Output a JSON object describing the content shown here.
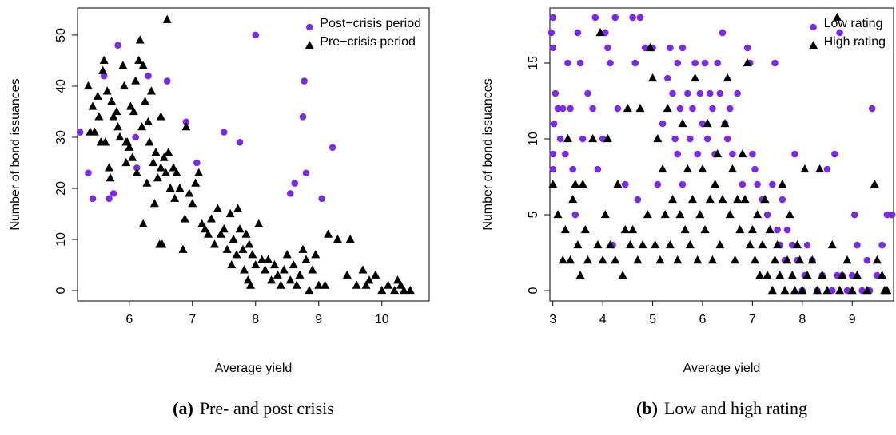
{
  "chart_data": [
    {
      "type": "scatter",
      "xlabel": "Average yield",
      "ylabel": "Number of bond issuances",
      "caption": {
        "label": "(a)",
        "text": "Pre- and post crisis"
      },
      "xlim": [
        5.18,
        10.75
      ],
      "ylim": [
        -2.03,
        55.3
      ],
      "xticks": [
        6,
        7,
        8,
        9,
        10
      ],
      "yticks": [
        0,
        10,
        20,
        30,
        40,
        50
      ],
      "legend": "topright",
      "series": [
        {
          "name": "Post−crisis period",
          "color": "#7b2be2",
          "marker": "circle",
          "x": [
            5.22,
            5.35,
            5.42,
            5.6,
            5.68,
            5.75,
            5.82,
            6.1,
            6.12,
            6.3,
            6.6,
            6.9,
            7.07,
            7.5,
            7.75,
            8.0,
            8.55,
            8.62,
            8.75,
            8.77,
            8.8,
            9.05,
            9.22
          ],
          "values": [
            31,
            23,
            18,
            42,
            18,
            19,
            48,
            30,
            24,
            42,
            41,
            33,
            25,
            31,
            29,
            50,
            19,
            21,
            34,
            41,
            23,
            18,
            28
          ]
        },
        {
          "name": "Pre−crisis period",
          "color": "#000000",
          "marker": "triangle",
          "x": [
            5.35,
            5.38,
            5.42,
            5.45,
            5.5,
            5.52,
            5.55,
            5.58,
            5.6,
            5.62,
            5.65,
            5.68,
            5.7,
            5.72,
            5.75,
            5.8,
            5.82,
            5.85,
            5.9,
            5.92,
            5.95,
            5.97,
            6.0,
            6.02,
            6.05,
            6.07,
            6.1,
            6.12,
            6.15,
            6.17,
            6.2,
            6.22,
            6.25,
            6.28,
            6.3,
            6.32,
            6.35,
            6.38,
            6.4,
            6.42,
            6.45,
            6.48,
            6.5,
            6.52,
            6.55,
            6.58,
            6.6,
            6.62,
            6.65,
            6.7,
            6.72,
            6.75,
            6.8,
            6.85,
            6.88,
            6.9,
            6.95,
            7.0,
            7.05,
            7.1,
            7.15,
            7.2,
            7.25,
            7.3,
            7.35,
            7.4,
            7.45,
            7.5,
            7.55,
            7.6,
            7.62,
            7.65,
            7.7,
            7.72,
            7.75,
            7.8,
            7.82,
            7.85,
            7.88,
            7.9,
            7.92,
            7.95,
            8.0,
            8.05,
            8.1,
            8.15,
            8.2,
            8.25,
            8.3,
            8.35,
            8.4,
            8.45,
            8.5,
            8.55,
            8.6,
            8.65,
            8.7,
            8.75,
            8.8,
            8.85,
            8.9,
            8.95,
            9.0,
            9.1,
            9.15,
            9.3,
            9.45,
            9.5,
            9.6,
            9.7,
            9.75,
            9.8,
            9.9,
            10.0,
            10.1,
            10.2,
            10.25,
            10.3,
            10.35,
            10.45,
            6.22,
            5.95,
            6.5
          ],
          "values": [
            40,
            31,
            36,
            31,
            38,
            34,
            29,
            43,
            45,
            29,
            39,
            24,
            22,
            37,
            34,
            35,
            32,
            30,
            44,
            40,
            25,
            29,
            28,
            36,
            26,
            35,
            41,
            23,
            45,
            49,
            32,
            44,
            37,
            21,
            33,
            29,
            39,
            25,
            17,
            27,
            22,
            9,
            24,
            9,
            26,
            23,
            53,
            27,
            20,
            24,
            18,
            23,
            20,
            8,
            14,
            32,
            19,
            17,
            21,
            23,
            13,
            12,
            11,
            14,
            9,
            16,
            11,
            12,
            8,
            15,
            5,
            10,
            7,
            16,
            12,
            8,
            4,
            11,
            2,
            9,
            1,
            7,
            5,
            13,
            6,
            4,
            6,
            2,
            5,
            3,
            1,
            4,
            7,
            2,
            5,
            1,
            3,
            8,
            6,
            0,
            4,
            7,
            1,
            1,
            11,
            10,
            3,
            10,
            1,
            4,
            1,
            2,
            3,
            0,
            1,
            0,
            2,
            1,
            0,
            0,
            13,
            29,
            34
          ]
        }
      ]
    },
    {
      "type": "scatter",
      "xlabel": "Average yield",
      "ylabel": "Number of bond issuances",
      "caption": {
        "label": "(b)",
        "text": "Low and high rating"
      },
      "xlim": [
        2.94,
        9.83
      ],
      "ylim": [
        -0.68,
        18.63
      ],
      "xticks": [
        3,
        4,
        5,
        6,
        7,
        8,
        9
      ],
      "yticks": [
        0,
        5,
        10,
        15
      ],
      "legend": "topright",
      "series": [
        {
          "name": "Low rating",
          "color": "#7b2be2",
          "marker": "circle",
          "x": [
            3.0,
            2.97,
            3.0,
            3.05,
            3.02,
            3.0,
            3.0,
            3.1,
            3.15,
            3.2,
            3.25,
            3.3,
            3.35,
            3.4,
            3.45,
            3.5,
            3.55,
            3.6,
            3.7,
            3.8,
            3.85,
            3.9,
            4.0,
            4.05,
            4.1,
            4.15,
            4.2,
            4.25,
            4.3,
            4.45,
            4.6,
            4.65,
            4.7,
            4.75,
            4.85,
            5.0,
            5.1,
            5.2,
            5.3,
            5.35,
            5.4,
            5.45,
            5.5,
            5.5,
            5.55,
            5.6,
            5.6,
            5.7,
            5.75,
            5.8,
            5.85,
            5.9,
            5.95,
            6.0,
            6.05,
            6.1,
            6.15,
            6.2,
            6.25,
            6.3,
            6.35,
            6.4,
            6.45,
            6.5,
            6.55,
            6.6,
            6.7,
            6.8,
            6.9,
            6.95,
            7.0,
            7.05,
            7.1,
            7.2,
            7.3,
            7.4,
            7.45,
            7.5,
            7.55,
            7.6,
            7.65,
            7.7,
            7.8,
            7.85,
            7.9,
            8.0,
            8.05,
            8.1,
            8.2,
            8.3,
            8.4,
            8.5,
            8.6,
            8.65,
            8.7,
            8.75,
            8.8,
            8.9,
            9.0,
            9.05,
            9.1,
            9.2,
            9.3,
            9.35,
            9.4,
            9.5,
            9.6,
            9.7,
            9.8
          ],
          "values": [
            18,
            17,
            16,
            13,
            11,
            9,
            8,
            12,
            10,
            12,
            9,
            15,
            12,
            8,
            5,
            17,
            15,
            10,
            13,
            12,
            18,
            8,
            10,
            17,
            16,
            15,
            3,
            18,
            12,
            7,
            18,
            15,
            6,
            18,
            16,
            16,
            7,
            11,
            14,
            16,
            13,
            10,
            15,
            9,
            12,
            16,
            7,
            13,
            10,
            12,
            15,
            9,
            13,
            11,
            15,
            10,
            13,
            12,
            9,
            15,
            13,
            17,
            11,
            10,
            12,
            9,
            13,
            7,
            16,
            15,
            9,
            8,
            7,
            6,
            5,
            7,
            15,
            4,
            3,
            6,
            2,
            4,
            3,
            9,
            2,
            0,
            1,
            3,
            2,
            0,
            1,
            8,
            0,
            9,
            1,
            17,
            1,
            0,
            1,
            5,
            3,
            0,
            2,
            0,
            12,
            1,
            3,
            5,
            5
          ]
        },
        {
          "name": "High rating",
          "color": "#000000",
          "marker": "triangle",
          "x": [
            3.0,
            3.1,
            3.2,
            3.25,
            3.3,
            3.35,
            3.4,
            3.45,
            3.5,
            3.55,
            3.6,
            3.65,
            3.7,
            3.8,
            3.9,
            3.95,
            4.0,
            4.05,
            4.1,
            4.15,
            4.25,
            4.3,
            4.4,
            4.45,
            4.5,
            4.55,
            4.6,
            4.7,
            4.75,
            4.8,
            4.9,
            4.95,
            5.0,
            5.05,
            5.1,
            5.15,
            5.2,
            5.25,
            5.3,
            5.35,
            5.4,
            5.5,
            5.55,
            5.6,
            5.65,
            5.7,
            5.75,
            5.8,
            5.85,
            5.9,
            5.95,
            6.0,
            6.05,
            6.1,
            6.15,
            6.2,
            6.25,
            6.3,
            6.35,
            6.4,
            6.45,
            6.5,
            6.55,
            6.6,
            6.65,
            6.7,
            6.75,
            6.8,
            6.85,
            6.9,
            6.95,
            7.0,
            7.05,
            7.1,
            7.15,
            7.2,
            7.25,
            7.3,
            7.35,
            7.4,
            7.45,
            7.5,
            7.55,
            7.6,
            7.65,
            7.7,
            7.75,
            7.8,
            7.85,
            7.9,
            7.95,
            8.0,
            8.05,
            8.1,
            8.2,
            8.3,
            8.35,
            8.4,
            8.5,
            8.6,
            8.7,
            8.75,
            8.8,
            8.9,
            9.0,
            9.1,
            9.3,
            9.45,
            9.5,
            9.6,
            9.65,
            9.7
          ],
          "values": [
            7,
            5,
            2,
            4,
            10,
            2,
            6,
            7,
            3,
            1,
            7,
            4,
            2,
            10,
            3,
            17,
            2,
            5,
            10,
            3,
            2,
            7,
            1,
            4,
            12,
            3,
            4,
            2,
            12,
            3,
            5,
            16,
            14,
            3,
            10,
            2,
            8,
            5,
            12,
            3,
            6,
            2,
            5,
            11,
            4,
            8,
            3,
            6,
            14,
            2,
            5,
            8,
            4,
            11,
            6,
            2,
            7,
            9,
            3,
            6,
            11,
            14,
            5,
            8,
            2,
            6,
            4,
            9,
            6,
            15,
            3,
            4,
            2,
            5,
            1,
            3,
            6,
            1,
            4,
            0,
            2,
            3,
            1,
            7,
            0,
            2,
            5,
            1,
            0,
            3,
            2,
            0,
            8,
            1,
            2,
            0,
            8,
            1,
            0,
            3,
            18,
            0,
            1,
            2,
            0,
            1,
            0,
            7,
            2,
            1,
            0,
            0
          ]
        }
      ]
    }
  ]
}
